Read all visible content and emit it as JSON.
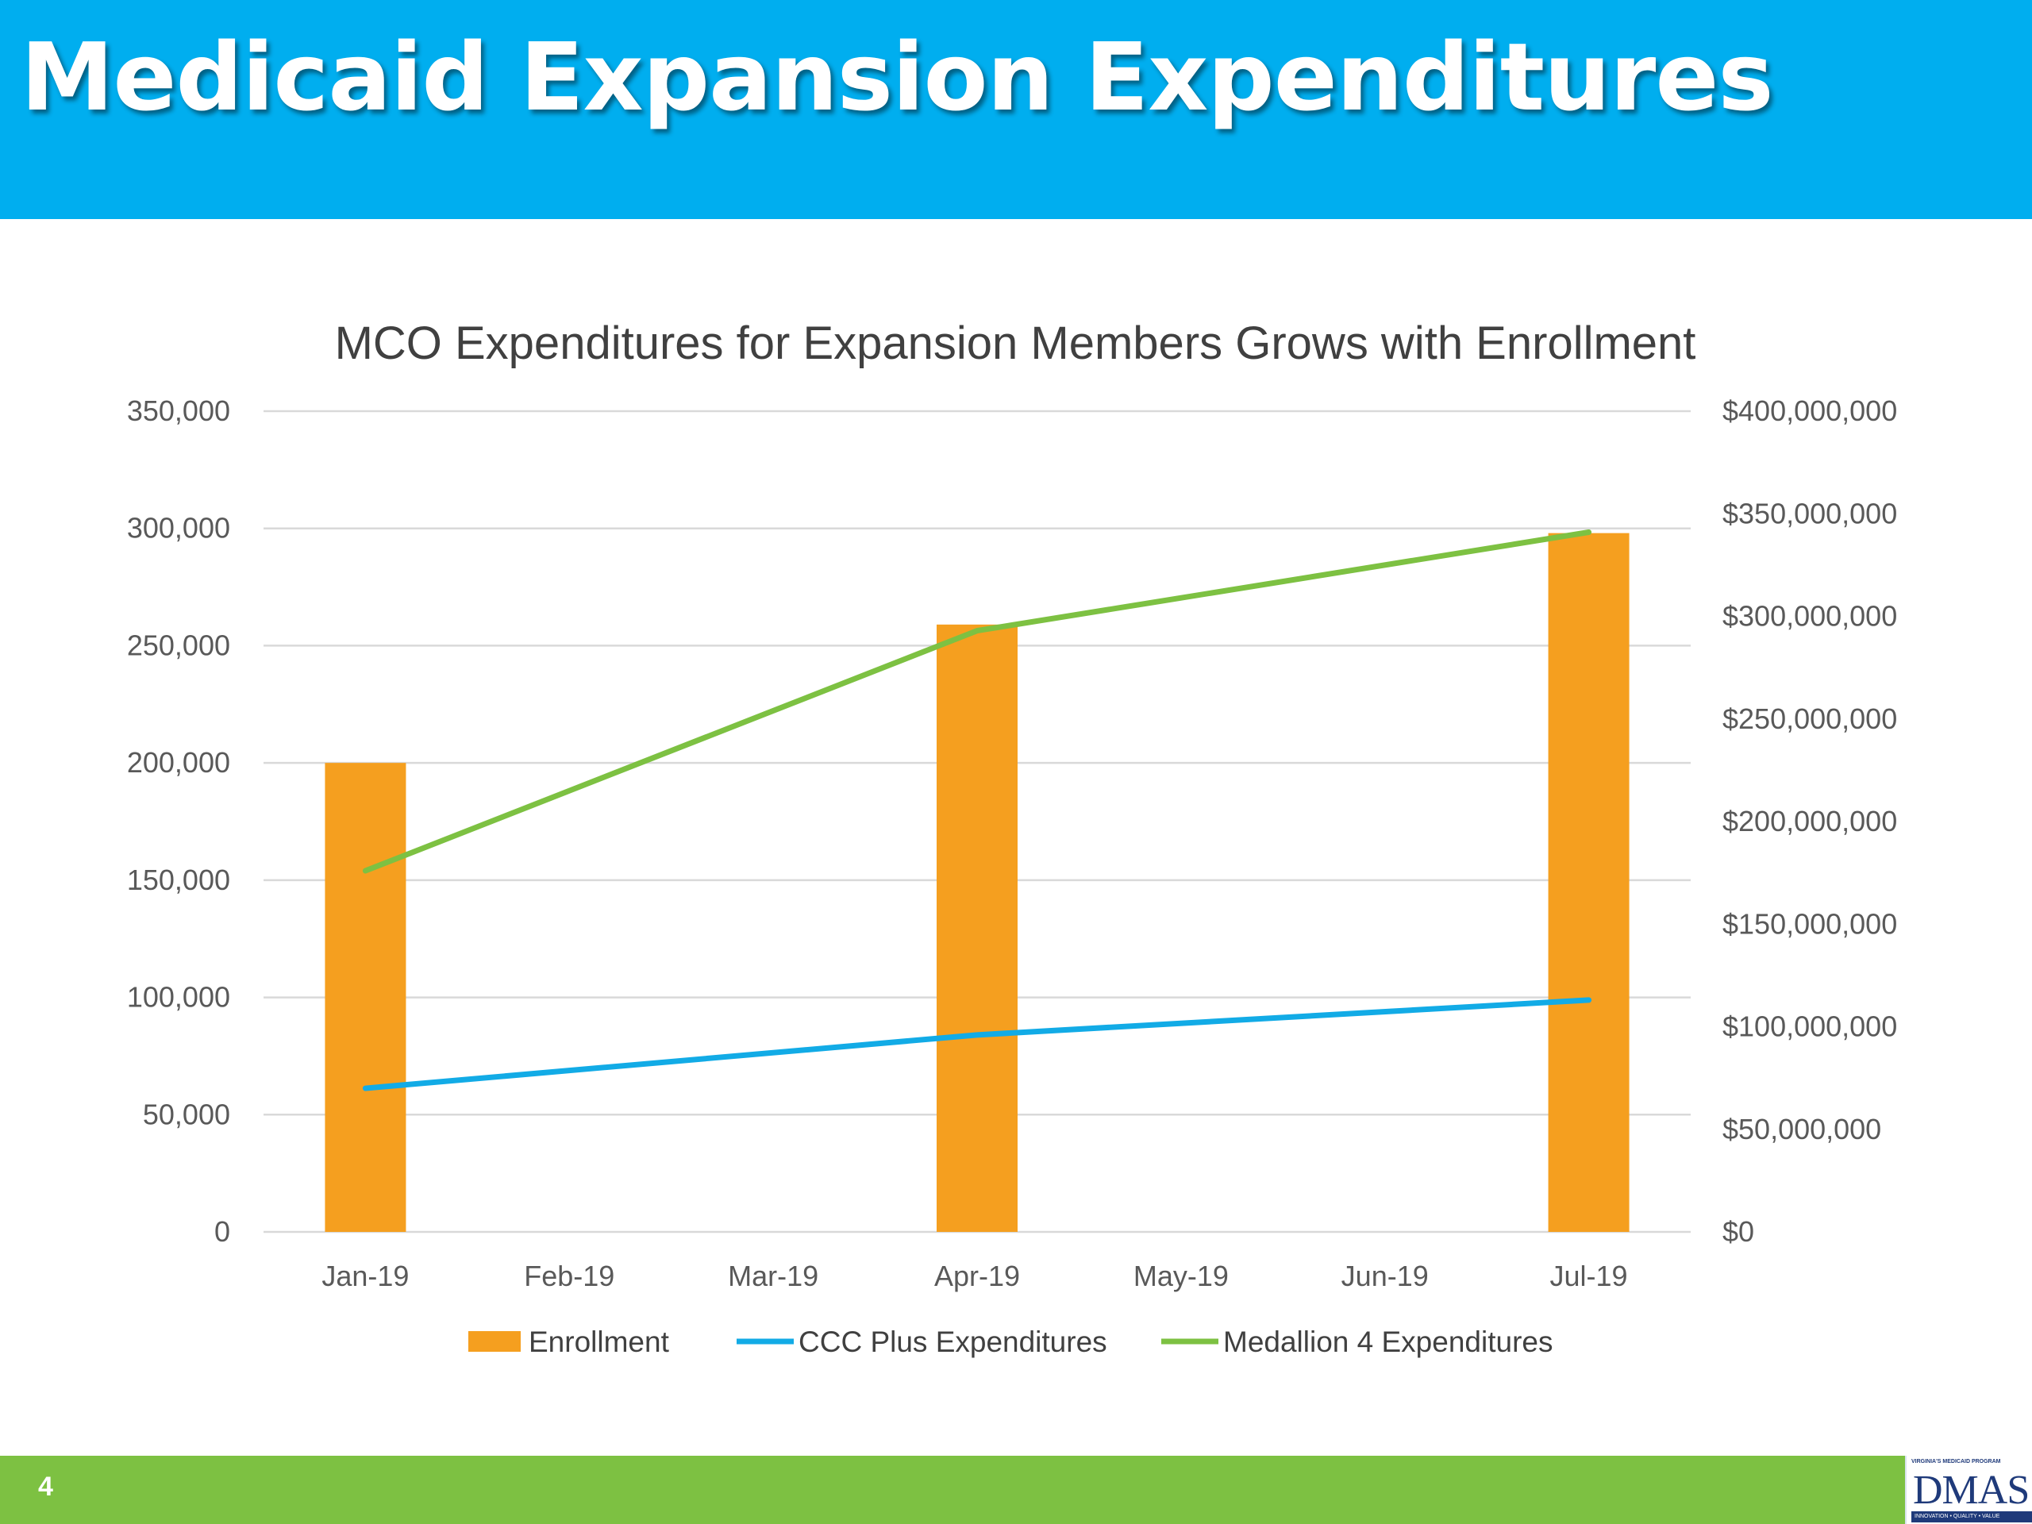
{
  "slide": {
    "title": "Medicaid Expansion Expenditures",
    "page_number": "4",
    "logo": {
      "text": "DMAS",
      "tagline_top": "VIRGINIA'S MEDICAID PROGRAM",
      "tagline_bottom": "INNOVATION • QUALITY • VALUE"
    },
    "colors": {
      "header": "#00AEEF",
      "footer": "#7DC142",
      "enrollment": "#F59F1F",
      "ccc_plus": "#12ABE6",
      "medallion": "#7DC142"
    }
  },
  "chart_data": {
    "type": "bar",
    "title": "MCO Expenditures for Expansion Members Grows with Enrollment",
    "categories": [
      "Jan-19",
      "Feb-19",
      "Mar-19",
      "Apr-19",
      "May-19",
      "Jun-19",
      "Jul-19"
    ],
    "y_left": {
      "min": 0,
      "max": 350000,
      "ticks": [
        0,
        50000,
        100000,
        150000,
        200000,
        250000,
        300000,
        350000
      ],
      "tick_labels": [
        "0",
        "50,000",
        "100,000",
        "150,000",
        "200,000",
        "250,000",
        "300,000",
        "350,000"
      ]
    },
    "y_right": {
      "min": 0,
      "max": 400000000,
      "ticks": [
        0,
        50000000,
        100000000,
        150000000,
        200000000,
        250000000,
        300000000,
        350000000,
        400000000
      ],
      "tick_labels": [
        "$0",
        "$50,000,000",
        "$100,000,000",
        "$150,000,000",
        "$200,000,000",
        "$250,000,000",
        "$300,000,000",
        "$350,000,000",
        "$400,000,000"
      ]
    },
    "grid": true,
    "legend_position": "bottom",
    "series": [
      {
        "name": "Enrollment",
        "type": "bar",
        "axis": "left",
        "color": "#F59F1F",
        "values": [
          200000,
          null,
          null,
          259000,
          null,
          null,
          298000
        ]
      },
      {
        "name": "CCC Plus Expenditures",
        "type": "line",
        "axis": "right",
        "color": "#12ABE6",
        "points": [
          [
            "Jan-19",
            70000000
          ],
          [
            "Apr-19",
            96000000
          ],
          [
            "Jul-19",
            113000000
          ]
        ]
      },
      {
        "name": "Medallion 4 Expenditures",
        "type": "line",
        "axis": "right",
        "color": "#7DC142",
        "points": [
          [
            "Jan-19",
            176000000
          ],
          [
            "Apr-19",
            293000000
          ],
          [
            "Jul-19",
            341000000
          ]
        ]
      }
    ]
  }
}
